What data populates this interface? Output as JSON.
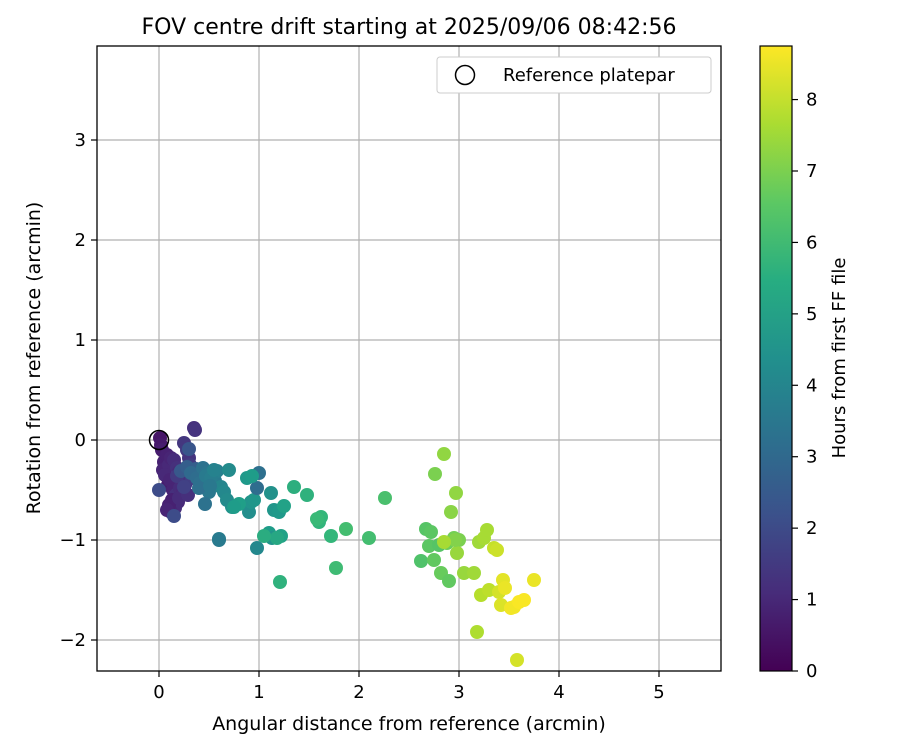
{
  "chart_data": {
    "type": "scatter",
    "title": "FOV centre drift starting at 2025/09/06 08:42:56",
    "xlabel": "Angular distance from reference (arcmin)",
    "ylabel": "Rotation from reference (arcmin)",
    "xlim": [
      -0.62,
      5.62
    ],
    "ylim": [
      -2.31,
      3.94
    ],
    "xticks": [
      0,
      1,
      2,
      3,
      4,
      5
    ],
    "yticks": [
      -2,
      -1,
      0,
      1,
      2,
      3
    ],
    "grid": true,
    "legend": {
      "placement": "top-right",
      "entries": [
        "Reference platepar"
      ]
    },
    "reference_point": {
      "x": 0.0,
      "y": 0.0,
      "label": "Reference platepar"
    },
    "colorbar": {
      "label": "Hours from first FF file",
      "range": [
        0,
        8.75
      ],
      "ticks": [
        0,
        1,
        2,
        3,
        4,
        5,
        6,
        7,
        8
      ],
      "colormap": "viridis"
    },
    "series": [
      {
        "x": [
          0.01,
          0.02,
          0.03,
          0.05,
          0.04,
          0.08,
          0.1,
          0.12,
          0.06,
          0.09,
          0.15,
          0.18,
          0.11,
          0.2,
          0.22,
          0.25,
          0.14,
          0.17,
          0.28,
          0.3,
          0.35,
          0.36,
          0.13,
          0.19,
          0.21,
          0.24,
          0.27,
          0.16,
          0.23,
          0.31,
          0.12,
          0.26,
          0.1,
          0.33,
          0.2,
          0.29,
          0.08,
          0.18,
          0.25,
          0.0,
          0.15,
          0.3,
          0.22,
          0.28,
          0.37,
          0.4,
          0.42,
          0.45,
          0.32,
          0.38,
          0.41,
          0.44,
          0.48,
          0.5,
          0.53,
          0.56,
          0.58,
          0.47,
          0.52,
          0.55,
          0.62,
          0.65,
          0.7,
          0.73,
          0.68,
          0.6,
          0.4,
          0.46,
          0.51,
          0.9,
          0.92,
          0.95,
          0.98,
          1.0,
          0.88,
          0.93,
          0.8,
          0.75,
          0.6,
          1.12,
          1.15,
          1.2,
          1.25,
          1.1,
          1.13,
          1.22,
          1.18,
          1.05,
          0.98,
          1.35,
          1.48,
          1.6,
          1.62,
          1.58,
          1.72,
          1.77,
          1.87,
          2.1,
          2.26,
          1.21,
          2.62,
          2.67,
          2.7,
          2.72,
          2.75,
          2.8,
          2.82,
          2.85,
          2.88,
          2.9,
          2.95,
          3.0,
          2.92,
          2.97,
          3.05,
          3.15,
          3.2,
          3.25,
          3.28,
          2.98,
          2.96,
          2.76,
          2.85,
          3.18,
          3.22,
          3.3,
          3.35,
          3.38,
          3.4,
          3.42,
          3.44,
          3.46,
          3.52,
          3.55,
          3.6,
          3.65,
          3.75,
          3.58
        ],
        "y": [
          0.02,
          -0.05,
          -0.1,
          -0.22,
          -0.3,
          -0.15,
          -0.25,
          -0.18,
          -0.35,
          -0.45,
          -0.2,
          -0.28,
          -0.4,
          -0.32,
          -0.38,
          -0.03,
          -0.5,
          -0.55,
          -0.1,
          -0.18,
          0.12,
          0.1,
          -0.6,
          -0.62,
          -0.48,
          -0.52,
          -0.42,
          -0.68,
          -0.3,
          -0.25,
          -0.72,
          -0.45,
          -0.65,
          -0.38,
          -0.58,
          -0.55,
          -0.7,
          -0.36,
          -0.47,
          -0.5,
          -0.76,
          -0.09,
          -0.31,
          -0.27,
          -0.29,
          -0.35,
          -0.41,
          -0.44,
          -0.33,
          -0.38,
          -0.43,
          -0.28,
          -0.33,
          -0.52,
          -0.32,
          -0.41,
          -0.31,
          -0.36,
          -0.38,
          -0.3,
          -0.47,
          -0.52,
          -0.3,
          -0.67,
          -0.6,
          -0.99,
          -0.48,
          -0.64,
          -0.46,
          -0.72,
          -0.62,
          -0.6,
          -0.48,
          -0.33,
          -0.38,
          -0.36,
          -0.64,
          -0.67,
          -1.0,
          -0.53,
          -0.7,
          -0.72,
          -0.66,
          -0.93,
          -0.98,
          -0.96,
          -0.98,
          -0.96,
          -1.08,
          -0.47,
          -0.55,
          -0.82,
          -0.77,
          -0.79,
          -0.96,
          -1.28,
          -0.89,
          -0.98,
          -0.58,
          -1.42,
          -1.21,
          -0.89,
          -1.06,
          -0.92,
          -1.2,
          -1.05,
          -1.33,
          -0.14,
          -1.03,
          -1.41,
          -0.98,
          -1.0,
          -0.72,
          -0.53,
          -1.33,
          -1.33,
          -1.02,
          -0.98,
          -0.9,
          -1.13,
          -1.0,
          -0.34,
          -1.02,
          -1.92,
          -1.55,
          -1.5,
          -1.08,
          -1.1,
          -1.52,
          -1.65,
          -1.4,
          -1.48,
          -1.68,
          -1.67,
          -1.62,
          -1.6,
          -1.4,
          -2.2
        ],
        "c": [
          0.5,
          0.6,
          0.7,
          0.8,
          0.9,
          0.8,
          1.0,
          0.9,
          1.0,
          0.7,
          1.1,
          1.2,
          0.9,
          1.0,
          1.3,
          1.4,
          0.9,
          1.2,
          1.5,
          1.3,
          1.2,
          1.3,
          0.8,
          1.0,
          1.1,
          1.0,
          1.2,
          1.1,
          1.4,
          1.5,
          0.9,
          1.3,
          0.8,
          1.6,
          1.1,
          1.2,
          0.9,
          1.5,
          1.7,
          2.0,
          2.0,
          2.3,
          2.4,
          2.6,
          2.6,
          2.8,
          2.9,
          3.0,
          3.0,
          3.1,
          3.2,
          3.3,
          3.4,
          3.5,
          3.5,
          3.6,
          3.8,
          3.6,
          3.7,
          3.9,
          4.0,
          4.1,
          4.2,
          4.4,
          4.2,
          3.7,
          3.2,
          3.3,
          3.5,
          4.3,
          4.5,
          4.6,
          3.1,
          3.2,
          4.7,
          4.8,
          4.9,
          4.8,
          3.6,
          4.4,
          4.6,
          4.7,
          5.0,
          4.8,
          4.5,
          5.0,
          5.2,
          5.4,
          4.1,
          5.5,
          5.6,
          5.7,
          5.8,
          5.9,
          5.8,
          6.0,
          6.1,
          6.1,
          6.2,
          5.6,
          6.3,
          6.4,
          6.5,
          6.5,
          6.6,
          6.4,
          6.7,
          7.3,
          6.8,
          6.6,
          6.9,
          7.0,
          7.2,
          7.3,
          7.4,
          7.5,
          7.5,
          7.6,
          7.6,
          7.4,
          7.1,
          7.0,
          7.6,
          7.7,
          7.8,
          7.9,
          8.0,
          8.1,
          8.2,
          8.3,
          8.4,
          8.5,
          8.6,
          8.6,
          8.7,
          8.7,
          8.5,
          8.2
        ]
      }
    ]
  }
}
